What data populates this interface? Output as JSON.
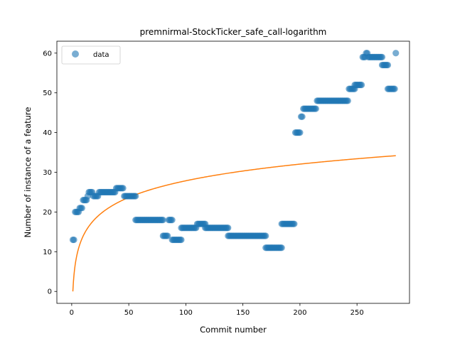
{
  "chart_data": {
    "type": "scatter",
    "title": "premnirmal-StockTicker_safe_call-logarithm",
    "xlabel": "Commit number",
    "ylabel": "Number of instance of a feature",
    "xlim": [
      -13,
      296
    ],
    "ylim": [
      -3,
      63
    ],
    "xticks": [
      0,
      50,
      100,
      150,
      200,
      250
    ],
    "yticks": [
      0,
      10,
      20,
      30,
      40,
      50,
      60
    ],
    "grid": false,
    "legend_position": "top-left",
    "colors": {
      "data": "#1f77b4",
      "fit": "#ff7f0e"
    },
    "series": [
      {
        "name": "data",
        "kind": "scatter",
        "segments": [
          {
            "x_start": 1,
            "x_end": 2,
            "y": 13
          },
          {
            "x_start": 3,
            "x_end": 6,
            "y": 20
          },
          {
            "x_start": 7,
            "x_end": 9,
            "y": 21
          },
          {
            "x_start": 10,
            "x_end": 13,
            "y": 23
          },
          {
            "x_start": 14,
            "x_end": 14,
            "y": 24
          },
          {
            "x_start": 15,
            "x_end": 18,
            "y": 25
          },
          {
            "x_start": 19,
            "x_end": 23,
            "y": 24
          },
          {
            "x_start": 24,
            "x_end": 38,
            "y": 25
          },
          {
            "x_start": 39,
            "x_end": 45,
            "y": 26
          },
          {
            "x_start": 46,
            "x_end": 56,
            "y": 24
          },
          {
            "x_start": 56,
            "x_end": 80,
            "y": 18
          },
          {
            "x_start": 80,
            "x_end": 84,
            "y": 14
          },
          {
            "x_start": 85,
            "x_end": 88,
            "y": 18
          },
          {
            "x_start": 88,
            "x_end": 96,
            "y": 13
          },
          {
            "x_start": 96,
            "x_end": 109,
            "y": 16
          },
          {
            "x_start": 110,
            "x_end": 117,
            "y": 17
          },
          {
            "x_start": 117,
            "x_end": 137,
            "y": 16
          },
          {
            "x_start": 137,
            "x_end": 170,
            "y": 14
          },
          {
            "x_start": 170,
            "x_end": 184,
            "y": 11
          },
          {
            "x_start": 184,
            "x_end": 195,
            "y": 17
          },
          {
            "x_start": 196,
            "x_end": 200,
            "y": 40
          },
          {
            "x_start": 201,
            "x_end": 202,
            "y": 44
          },
          {
            "x_start": 203,
            "x_end": 214,
            "y": 46
          },
          {
            "x_start": 215,
            "x_end": 242,
            "y": 48
          },
          {
            "x_start": 243,
            "x_end": 248,
            "y": 51
          },
          {
            "x_start": 248,
            "x_end": 254,
            "y": 52
          },
          {
            "x_start": 255,
            "x_end": 257,
            "y": 59
          },
          {
            "x_start": 258,
            "x_end": 259,
            "y": 60
          },
          {
            "x_start": 260,
            "x_end": 272,
            "y": 59
          },
          {
            "x_start": 272,
            "x_end": 277,
            "y": 57
          },
          {
            "x_start": 277,
            "x_end": 283,
            "y": 51
          },
          {
            "x_start": 284,
            "x_end": 284,
            "y": 60
          }
        ]
      },
      {
        "name": "",
        "kind": "line",
        "function": "y = 6.05 * ln(x)",
        "x_range": [
          1,
          284
        ]
      }
    ]
  }
}
